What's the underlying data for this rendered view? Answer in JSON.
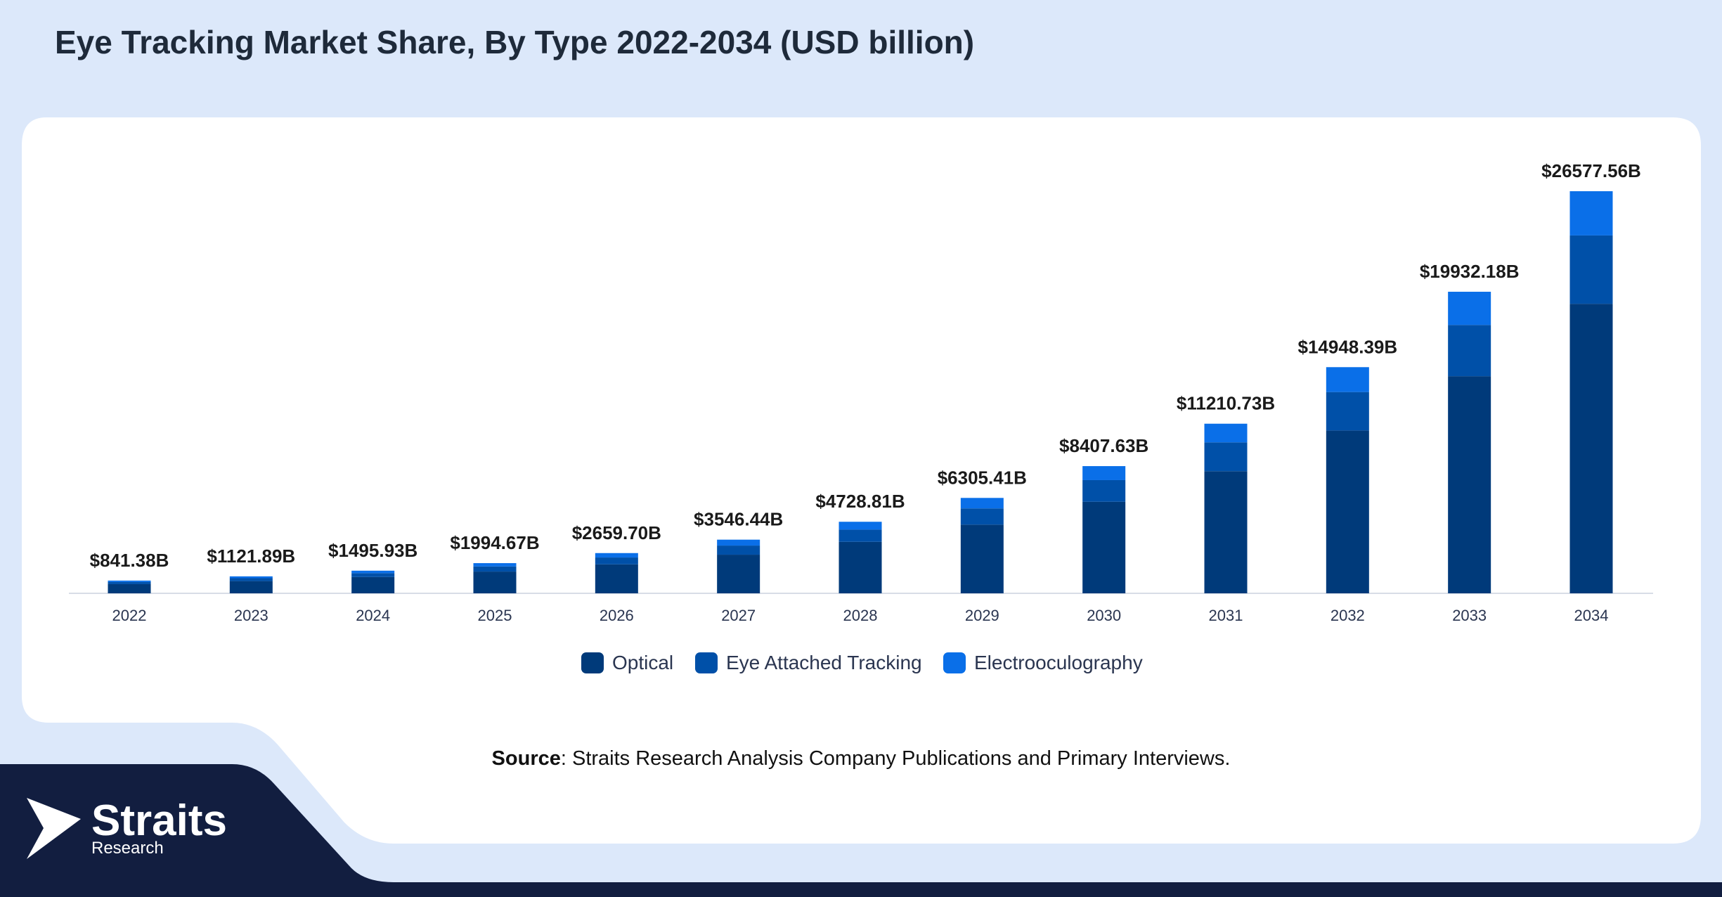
{
  "chart_data": {
    "type": "stacked_bar",
    "title": "Eye Tracking Market Share, By Type 2022-2034 (USD billion)",
    "categories": [
      "2022",
      "2023",
      "2024",
      "2025",
      "2026",
      "2027",
      "2028",
      "2029",
      "2030",
      "2031",
      "2032",
      "2033",
      "2034"
    ],
    "series": [
      {
        "name": "Optical",
        "color": "#003a7a",
        "values": [
          606,
          808,
          1077,
          1436,
          1915,
          2553,
          3405,
          4540,
          6053,
          8072,
          10763,
          14351,
          19136
        ]
      },
      {
        "name": "Eye Attached Tracking",
        "color": "#0050a8",
        "values": [
          143,
          191,
          254,
          339,
          452,
          603,
          804,
          1072,
          1429,
          1906,
          2541,
          3388,
          4518
        ]
      },
      {
        "name": "Electrooculography",
        "color": "#0a6fe8",
        "values": [
          92.38,
          122.89,
          164.93,
          219.67,
          292.7,
          390.44,
          519.81,
          693.41,
          925.63,
          1232.73,
          1644.39,
          2193.18,
          2923.56
        ]
      }
    ],
    "totals": {
      "values": [
        841.38,
        1121.89,
        1495.93,
        1994.67,
        2659.7,
        3546.44,
        4728.81,
        6305.41,
        8407.63,
        11210.73,
        14948.39,
        19932.18,
        26577.56
      ],
      "value_labels": [
        "$841.38B",
        "$1121.89B",
        "$1495.93B",
        "$1994.67B",
        "$2659.70B",
        "$3546.44B",
        "$4728.81B",
        "$6305.41B",
        "$8407.63B",
        "$11210.73B",
        "$14948.39B",
        "$19932.18B",
        "$26577.56B"
      ]
    },
    "legend": "bottom",
    "source_label": "Source",
    "source_text": ": Straits Research Analysis Company Publications and Primary Interviews.",
    "logo": {
      "name": "Straits",
      "sub": "Research"
    }
  }
}
